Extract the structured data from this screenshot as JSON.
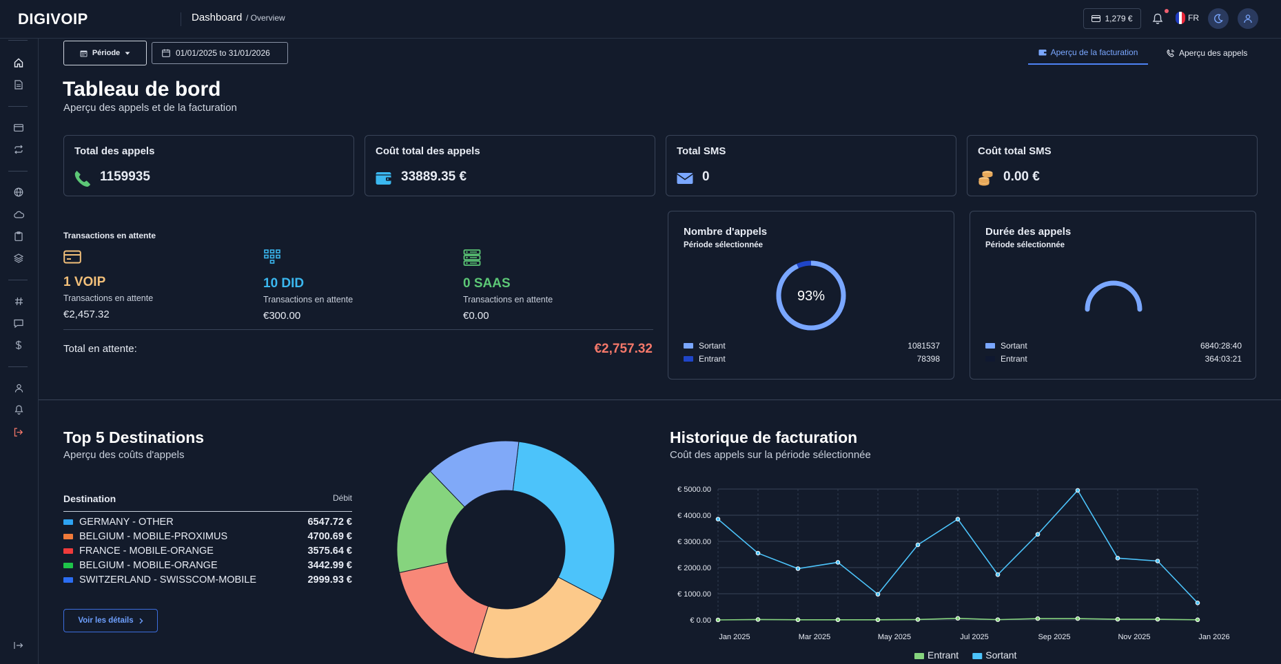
{
  "brand": {
    "logo": "DIGIVOIP"
  },
  "topbar": {
    "title": "Dashboard",
    "subtitle": "/ Overview",
    "balance": "1,279 €",
    "lang": "FR"
  },
  "toolbar": {
    "period_label": "Période",
    "date_range": "01/01/2025 to 31/01/2026",
    "tabs": [
      {
        "label": "Aperçu de la facturation",
        "active": true
      },
      {
        "label": "Aperçu des appels",
        "active": false
      }
    ]
  },
  "header": {
    "title": "Tableau de bord",
    "subtitle": "Aperçu des appels et de la facturation"
  },
  "stats": [
    {
      "title": "Total des appels",
      "value": "1159935",
      "icon": "phone-icon",
      "color": "#5cc776"
    },
    {
      "title": "Coût total des appels",
      "value": "33889.35 €",
      "icon": "wallet-icon",
      "color": "#3bb8f0"
    },
    {
      "title": "Total SMS",
      "value": "0",
      "icon": "envelope-icon",
      "color": "#7aa7ff"
    },
    {
      "title": "Coût total SMS",
      "value": "0.00 €",
      "icon": "coins-icon",
      "color": "#f3c07a"
    }
  ],
  "pending": {
    "title": "Transactions en attente",
    "items": [
      {
        "big": "1 VOIP",
        "label": "Transactions en attente",
        "amount": "€2,457.32",
        "color": "#f3c07a"
      },
      {
        "big": "10 DID",
        "label": "Transactions en attente",
        "amount": "€300.00",
        "color": "#3bb8f0"
      },
      {
        "big": "0 SAAS",
        "label": "Transactions en attente",
        "amount": "€0.00",
        "color": "#5cc776"
      }
    ],
    "total_label": "Total en attente:",
    "total_value": "€2,757.32"
  },
  "calls_count": {
    "title": "Nombre d'appels",
    "subtitle": "Période sélectionnée",
    "percent_label": "93%",
    "percent": 0.93,
    "legend": [
      {
        "label": "Sortant",
        "value": "1081537",
        "color": "#7aa7ff"
      },
      {
        "label": "Entrant",
        "value": "78398",
        "color": "#1f45c8"
      }
    ]
  },
  "calls_duration": {
    "title": "Durée des appels",
    "subtitle": "Période sélectionnée",
    "legend": [
      {
        "label": "Sortant",
        "value": "6840:28:40",
        "color": "#7aa7ff"
      },
      {
        "label": "Entrant",
        "value": "364:03:21",
        "color": "#0f1830"
      }
    ]
  },
  "destinations": {
    "title": "Top 5 Destinations",
    "subtitle": "Aperçu des coûts d'appels",
    "col_destination": "Destination",
    "col_debit": "Débit",
    "rows": [
      {
        "name": "GERMANY - OTHER",
        "amount": "6547.72 €",
        "color": "#2ea3f2"
      },
      {
        "name": "BELGIUM - MOBILE-PROXIMUS",
        "amount": "4700.69 €",
        "color": "#f07a3a"
      },
      {
        "name": "FRANCE - MOBILE-ORANGE",
        "amount": "3575.64 €",
        "color": "#ef3b3b"
      },
      {
        "name": "BELGIUM - MOBILE-ORANGE",
        "amount": "3442.99 €",
        "color": "#1ec44a"
      },
      {
        "name": "SWITZERLAND - SWISSCOM-MOBILE",
        "amount": "2999.93 €",
        "color": "#2b6df2"
      }
    ],
    "details_button": "Voir les détails"
  },
  "billing": {
    "title": "Historique de facturation",
    "subtitle": "Coût des appels sur la période sélectionnée"
  },
  "chart_data": [
    {
      "type": "pie",
      "donut": true,
      "labels": [
        "GERMANY - OTHER",
        "BELGIUM - MOBILE-PROXIMUS",
        "FRANCE - MOBILE-ORANGE",
        "BELGIUM - MOBILE-ORANGE",
        "SWITZERLAND - SWISSCOM-MOBILE"
      ],
      "values": [
        6547.72,
        4700.69,
        3575.64,
        3442.99,
        2999.93
      ],
      "colors": [
        "#4cc3fa",
        "#fcc98a",
        "#f88878",
        "#86d47e",
        "#80a9f8"
      ]
    },
    {
      "type": "line",
      "x": [
        "Jan 2025",
        "Feb 2025",
        "Mar 2025",
        "Apr 2025",
        "May 2025",
        "Jun 2025",
        "Jul 2025",
        "Aug 2025",
        "Sep 2025",
        "Oct 2025",
        "Nov 2025",
        "Dec 2025",
        "Jan 2026"
      ],
      "x_tick_labels": [
        "Jan 2025",
        "Mar 2025",
        "May 2025",
        "Jul 2025",
        "Sep 2025",
        "Nov 2025",
        "Jan 2026"
      ],
      "y_tick_labels": [
        "€ 0.00",
        "€ 1000.00",
        "€ 2000.00",
        "€ 3000.00",
        "€ 4000.00",
        "€ 5000.00"
      ],
      "ylim": [
        0,
        5000
      ],
      "legend_placement": "bottom",
      "series": [
        {
          "name": "Entrant",
          "color": "#86d47e",
          "values": [
            0,
            15,
            5,
            5,
            5,
            15,
            60,
            10,
            50,
            50,
            25,
            25,
            5
          ]
        },
        {
          "name": "Sortant",
          "color": "#4cc3fa",
          "values": [
            3850,
            2550,
            1960,
            2200,
            980,
            2870,
            3850,
            1730,
            3270,
            4950,
            2360,
            2250,
            650
          ]
        }
      ]
    }
  ]
}
